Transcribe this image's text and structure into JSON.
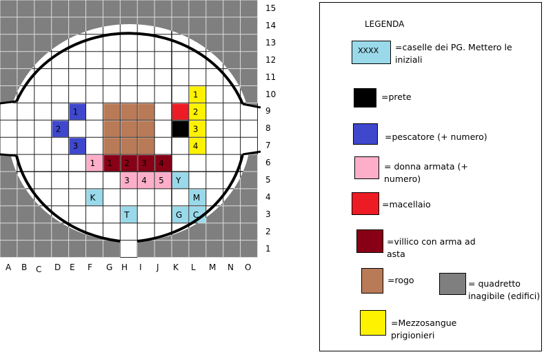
{
  "map": {
    "columns": [
      "A",
      "B",
      "C",
      "D",
      "E",
      "F",
      "G",
      "H",
      "I",
      "J",
      "K",
      "L",
      "M",
      "N",
      "O"
    ],
    "rows": [
      "15",
      "14",
      "13",
      "12",
      "11",
      "10",
      "9",
      "8",
      "7",
      "6",
      "5",
      "4",
      "3",
      "2",
      "1"
    ],
    "cells": [
      {
        "col": "L",
        "row": 10,
        "type": "mezzosangue",
        "label": "1"
      },
      {
        "col": "E",
        "row": 9,
        "type": "pescatore",
        "label": "1"
      },
      {
        "col": "G",
        "row": 9,
        "type": "rogo",
        "label": ""
      },
      {
        "col": "H",
        "row": 9,
        "type": "rogo",
        "label": ""
      },
      {
        "col": "I",
        "row": 9,
        "type": "rogo",
        "label": ""
      },
      {
        "col": "K",
        "row": 9,
        "type": "macellaio",
        "label": ""
      },
      {
        "col": "L",
        "row": 9,
        "type": "mezzosangue",
        "label": "2"
      },
      {
        "col": "D",
        "row": 8,
        "type": "pescatore",
        "label": "2"
      },
      {
        "col": "G",
        "row": 8,
        "type": "rogo",
        "label": ""
      },
      {
        "col": "H",
        "row": 8,
        "type": "rogo",
        "label": ""
      },
      {
        "col": "I",
        "row": 8,
        "type": "rogo",
        "label": ""
      },
      {
        "col": "K",
        "row": 8,
        "type": "prete",
        "label": ""
      },
      {
        "col": "L",
        "row": 8,
        "type": "mezzosangue",
        "label": "3"
      },
      {
        "col": "E",
        "row": 7,
        "type": "pescatore",
        "label": "3"
      },
      {
        "col": "G",
        "row": 7,
        "type": "rogo",
        "label": ""
      },
      {
        "col": "H",
        "row": 7,
        "type": "rogo",
        "label": ""
      },
      {
        "col": "I",
        "row": 7,
        "type": "rogo",
        "label": ""
      },
      {
        "col": "L",
        "row": 7,
        "type": "mezzosangue",
        "label": "4"
      },
      {
        "col": "F",
        "row": 6,
        "type": "donna",
        "label": "1"
      },
      {
        "col": "G",
        "row": 6,
        "type": "villico",
        "label": "1"
      },
      {
        "col": "H",
        "row": 6,
        "type": "villico",
        "label": "2"
      },
      {
        "col": "I",
        "row": 6,
        "type": "villico",
        "label": "3"
      },
      {
        "col": "J",
        "row": 6,
        "type": "villico",
        "label": "4"
      },
      {
        "col": "H",
        "row": 5,
        "type": "donna",
        "label": "3"
      },
      {
        "col": "I",
        "row": 5,
        "type": "donna",
        "label": "4"
      },
      {
        "col": "J",
        "row": 5,
        "type": "donna",
        "label": "5"
      },
      {
        "col": "K",
        "row": 5,
        "type": "pg",
        "label": "Y"
      },
      {
        "col": "F",
        "row": 4,
        "type": "pg",
        "label": "K"
      },
      {
        "col": "L",
        "row": 4,
        "type": "pg",
        "label": "M"
      },
      {
        "col": "H",
        "row": 3,
        "type": "pg",
        "label": "T"
      },
      {
        "col": "K",
        "row": 3,
        "type": "pg",
        "label": "G"
      },
      {
        "col": "L",
        "row": 3,
        "type": "pg",
        "label": "C"
      }
    ]
  },
  "colors": {
    "pg": "#99d9ea",
    "prete": "#000000",
    "pescatore": "#3f48cc",
    "donna": "#ffaec9",
    "macellaio": "#ed1c24",
    "villico": "#880015",
    "rogo": "#b97a57",
    "inagibile": "#7f7f7f",
    "mezzosangue": "#fff200"
  },
  "legend": {
    "title": "LEGENDA",
    "pg_sample": "XXXX",
    "items": [
      {
        "key": "pg",
        "text1": "=caselle dei PG. Mettero le",
        "text2": "iniziali"
      },
      {
        "key": "prete",
        "text1": "=prete",
        "text2": ""
      },
      {
        "key": "pescatore",
        "text1": "=pescatore (+ numero)",
        "text2": ""
      },
      {
        "key": "donna",
        "text1": "= donna armata (+",
        "text2": "numero)"
      },
      {
        "key": "macellaio",
        "text1": "=macellaio",
        "text2": ""
      },
      {
        "key": "villico",
        "text1": "=villico con arma ad",
        "text2": "asta"
      },
      {
        "key": "rogo",
        "text1": "=rogo",
        "text2": ""
      },
      {
        "key": "inagibile",
        "text1": "= quadretto",
        "text2": "inagibile (edifici)"
      },
      {
        "key": "mezzosangue",
        "text1": "=Mezzosangue",
        "text2": "prigionieri"
      }
    ]
  }
}
